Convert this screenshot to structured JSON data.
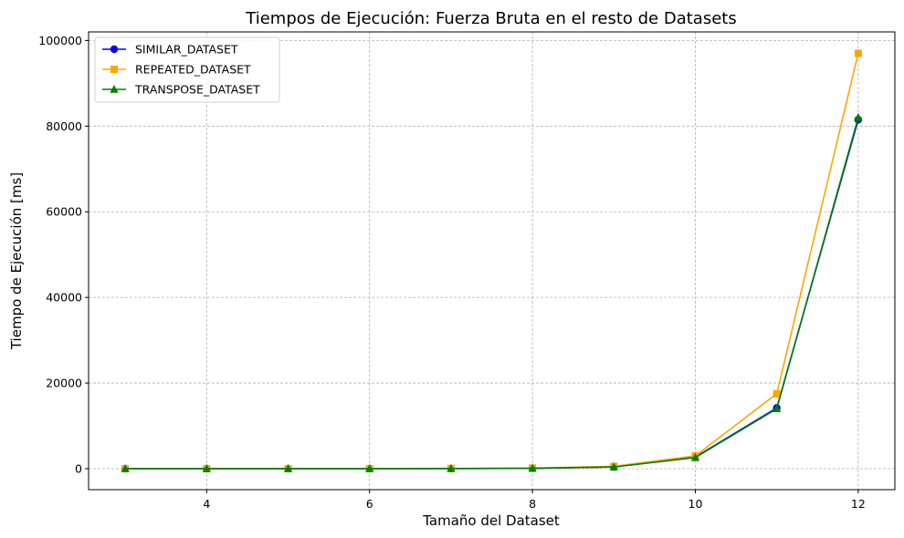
{
  "chart_data": {
    "type": "line",
    "title": "Tiempos de Ejecución: Fuerza Bruta en el resto de Datasets",
    "xlabel": "Tamaño del Dataset",
    "ylabel": "Tiempo de Ejecución [ms]",
    "x": [
      3,
      4,
      5,
      6,
      7,
      8,
      9,
      10,
      11,
      12
    ],
    "xlim": [
      2.55,
      12.45
    ],
    "ylim": [
      -4900,
      102000
    ],
    "xticks": [
      4,
      6,
      8,
      10,
      12
    ],
    "yticks": [
      0,
      20000,
      40000,
      60000,
      80000,
      100000
    ],
    "grid": true,
    "legend_position": "top-left",
    "series": [
      {
        "name": "SIMILAR_DATASET",
        "color": "#0000ff",
        "marker": "circle",
        "values": [
          1,
          2,
          5,
          10,
          30,
          100,
          400,
          2700,
          14200,
          81500
        ]
      },
      {
        "name": "REPEATED_DATASET",
        "color": "#ffa500",
        "marker": "square",
        "values": [
          1,
          3,
          8,
          20,
          60,
          150,
          550,
          3000,
          17500,
          97000
        ]
      },
      {
        "name": "TRANSPOSE_DATASET",
        "color": "#008000",
        "marker": "triangle",
        "values": [
          1,
          2,
          5,
          10,
          30,
          100,
          400,
          2600,
          14000,
          82000
        ]
      }
    ]
  }
}
